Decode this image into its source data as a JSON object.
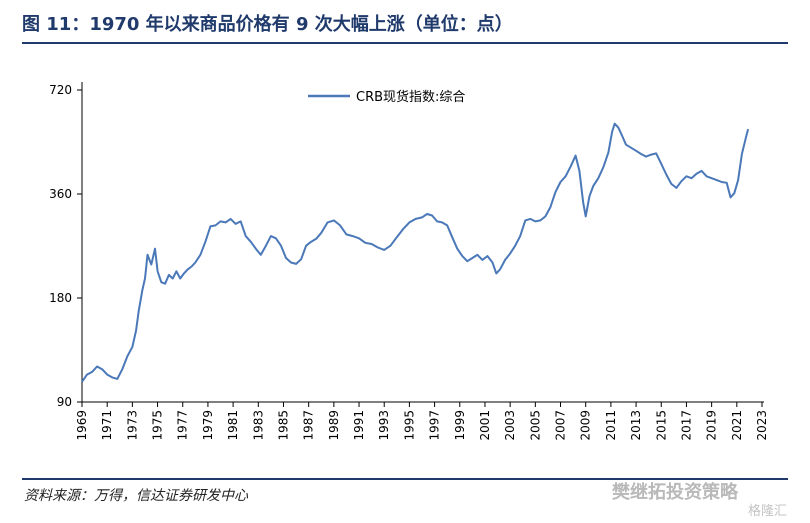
{
  "title": "图 11：1970 年以来商品价格有 9 次大幅上涨（单位：点）",
  "source": "资料来源：万得，信达证券研发中心",
  "watermark": "樊继拓投资策略",
  "watermark_sub": "格隆汇",
  "colors": {
    "title": "#1f3a6b",
    "line": "#4a78b8",
    "rule": "#1f3a6b"
  },
  "chart_data": {
    "type": "line",
    "title": "",
    "xlabel": "",
    "ylabel": "",
    "y_scale": "log",
    "ylim": [
      90,
      720
    ],
    "xlim": [
      1969,
      2023
    ],
    "y_ticks": [
      90,
      180,
      360,
      720
    ],
    "x_ticks": [
      1969,
      1971,
      1973,
      1975,
      1977,
      1979,
      1981,
      1983,
      1985,
      1987,
      1989,
      1991,
      1993,
      1995,
      1997,
      1999,
      2001,
      2003,
      2005,
      2007,
      2009,
      2011,
      2013,
      2015,
      2017,
      2019,
      2021,
      2023
    ],
    "legend_position": "top-center",
    "grid": false,
    "series": [
      {
        "name": "CRB现货指数:综合",
        "x": [
          1969.0,
          1969.4,
          1969.8,
          1970.2,
          1970.6,
          1971.0,
          1971.4,
          1971.8,
          1972.2,
          1972.6,
          1973.0,
          1973.3,
          1973.5,
          1973.8,
          1974.0,
          1974.2,
          1974.5,
          1974.8,
          1975.0,
          1975.3,
          1975.6,
          1975.9,
          1976.2,
          1976.5,
          1976.8,
          1977.1,
          1977.4,
          1977.7,
          1978.0,
          1978.4,
          1978.8,
          1979.2,
          1979.6,
          1980.0,
          1980.4,
          1980.8,
          1981.2,
          1981.6,
          1982.0,
          1982.4,
          1982.8,
          1983.2,
          1983.6,
          1984.0,
          1984.4,
          1984.8,
          1985.2,
          1985.6,
          1986.0,
          1986.4,
          1986.8,
          1987.2,
          1987.6,
          1988.0,
          1988.5,
          1989.0,
          1989.5,
          1990.0,
          1990.5,
          1991.0,
          1991.5,
          1992.0,
          1992.5,
          1993.0,
          1993.5,
          1994.0,
          1994.5,
          1995.0,
          1995.5,
          1996.0,
          1996.4,
          1996.8,
          1997.2,
          1997.6,
          1998.0,
          1998.4,
          1998.8,
          1999.2,
          1999.6,
          2000.0,
          2000.4,
          2000.8,
          2001.2,
          2001.6,
          2001.9,
          2002.2,
          2002.6,
          2003.0,
          2003.4,
          2003.8,
          2004.2,
          2004.6,
          2005.0,
          2005.4,
          2005.8,
          2006.2,
          2006.6,
          2007.0,
          2007.4,
          2007.8,
          2008.2,
          2008.5,
          2008.8,
          2009.0,
          2009.3,
          2009.6,
          2010.0,
          2010.4,
          2010.8,
          2011.1,
          2011.3,
          2011.6,
          2011.9,
          2012.2,
          2012.6,
          2013.0,
          2013.4,
          2013.8,
          2014.2,
          2014.6,
          2015.0,
          2015.4,
          2015.8,
          2016.2,
          2016.6,
          2017.0,
          2017.4,
          2017.8,
          2018.2,
          2018.6,
          2019.0,
          2019.4,
          2019.8,
          2020.2,
          2020.5,
          2020.8,
          2021.1,
          2021.4,
          2021.7,
          2021.9
        ],
        "values": [
          103,
          108,
          110,
          114,
          112,
          108,
          106,
          105,
          112,
          122,
          130,
          145,
          165,
          190,
          205,
          240,
          225,
          250,
          215,
          200,
          198,
          210,
          205,
          215,
          205,
          212,
          218,
          222,
          228,
          240,
          262,
          290,
          292,
          300,
          298,
          305,
          295,
          300,
          272,
          262,
          250,
          240,
          255,
          272,
          268,
          255,
          235,
          228,
          226,
          233,
          255,
          262,
          267,
          278,
          298,
          302,
          292,
          275,
          272,
          268,
          260,
          258,
          252,
          248,
          255,
          270,
          285,
          298,
          305,
          308,
          315,
          312,
          300,
          298,
          292,
          270,
          250,
          238,
          230,
          235,
          240,
          232,
          238,
          228,
          212,
          218,
          232,
          242,
          255,
          272,
          302,
          305,
          300,
          302,
          310,
          330,
          365,
          390,
          405,
          432,
          465,
          420,
          340,
          310,
          355,
          380,
          400,
          430,
          475,
          545,
          575,
          560,
          530,
          500,
          490,
          480,
          470,
          462,
          468,
          472,
          440,
          410,
          385,
          375,
          392,
          405,
          400,
          412,
          420,
          405,
          400,
          395,
          390,
          388,
          352,
          362,
          395,
          470,
          520,
          555
        ]
      }
    ]
  }
}
